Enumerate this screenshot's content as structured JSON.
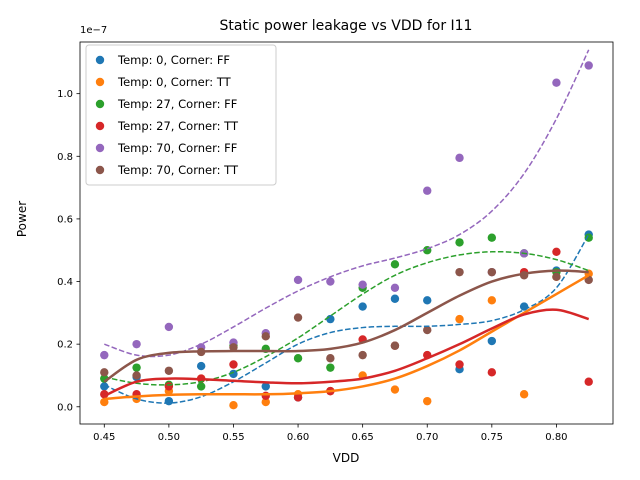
{
  "chart_data": {
    "type": "scatter",
    "title": "Static power leakage vs VDD for I11",
    "xlabel": "VDD",
    "ylabel": "Power",
    "y_offset_label": "1e−7",
    "y_multiplier": 1e-07,
    "xlim": [
      0.4312,
      0.8438
    ],
    "ylim": [
      -0.055,
      1.165
    ],
    "x_ticks": [
      0.45,
      0.5,
      0.55,
      0.6,
      0.65,
      0.7,
      0.75,
      0.8
    ],
    "x_tick_labels": [
      "0.45",
      "0.50",
      "0.55",
      "0.60",
      "0.65",
      "0.70",
      "0.75",
      "0.80"
    ],
    "y_ticks": [
      0.0,
      0.2,
      0.4,
      0.6,
      0.8,
      1.0
    ],
    "y_tick_labels": [
      "0.0",
      "0.2",
      "0.4",
      "0.6",
      "0.8",
      "1.0"
    ],
    "grid": false,
    "legend_position": "upper-left",
    "x": [
      0.45,
      0.475,
      0.5,
      0.525,
      0.55,
      0.575,
      0.6,
      0.625,
      0.65,
      0.675,
      0.7,
      0.725,
      0.75,
      0.775,
      0.8,
      0.825
    ],
    "series": [
      {
        "name": "Temp: 0, Corner: FF",
        "color": "#1f77b4",
        "fit_style": "dashed",
        "values": [
          0.065,
          0.095,
          0.018,
          0.13,
          0.105,
          0.065,
          0.03,
          0.28,
          0.32,
          0.345,
          0.34,
          0.12,
          0.21,
          0.32,
          0.435,
          0.55
        ],
        "fit": [
          0.07,
          0.025,
          0.012,
          0.032,
          0.08,
          0.14,
          0.2,
          0.237,
          0.253,
          0.257,
          0.257,
          0.263,
          0.275,
          0.31,
          0.38,
          0.55
        ]
      },
      {
        "name": "Temp: 0, Corner: TT",
        "color": "#ff7f0e",
        "fit_style": "solid",
        "values": [
          0.015,
          0.025,
          0.05,
          0.09,
          0.005,
          0.015,
          0.04,
          0.05,
          0.1,
          0.055,
          0.018,
          0.28,
          0.34,
          0.04,
          0.415,
          0.425
        ],
        "fit": [
          0.025,
          0.033,
          0.038,
          0.04,
          0.04,
          0.04,
          0.043,
          0.05,
          0.065,
          0.09,
          0.13,
          0.18,
          0.24,
          0.3,
          0.36,
          0.42
        ]
      },
      {
        "name": "Temp: 27, Corner: FF",
        "color": "#2ca02c",
        "fit_style": "dashed",
        "values": [
          0.09,
          0.125,
          0.07,
          0.065,
          0.195,
          0.185,
          0.155,
          0.125,
          0.38,
          0.455,
          0.5,
          0.525,
          0.54,
          0.49,
          0.43,
          0.54
        ],
        "fit": [
          0.095,
          0.075,
          0.07,
          0.08,
          0.11,
          0.16,
          0.22,
          0.29,
          0.36,
          0.42,
          0.46,
          0.485,
          0.495,
          0.49,
          0.47,
          0.435
        ]
      },
      {
        "name": "Temp: 27, Corner: TT",
        "color": "#d62728",
        "fit_style": "solid",
        "values": [
          0.04,
          0.04,
          0.065,
          0.09,
          0.135,
          0.035,
          0.03,
          0.05,
          0.215,
          0.195,
          0.165,
          0.135,
          0.11,
          0.43,
          0.495,
          0.08
        ],
        "fit": [
          0.035,
          0.08,
          0.09,
          0.088,
          0.083,
          0.078,
          0.075,
          0.08,
          0.09,
          0.115,
          0.155,
          0.2,
          0.25,
          0.295,
          0.31,
          0.28
        ]
      },
      {
        "name": "Temp: 70, Corner: FF",
        "color": "#9467bd",
        "fit_style": "dashed",
        "values": [
          0.165,
          0.2,
          0.255,
          0.19,
          0.205,
          0.235,
          0.405,
          0.4,
          0.39,
          0.38,
          0.69,
          0.795,
          0.43,
          0.49,
          1.035,
          1.09
        ],
        "fit": [
          0.2,
          0.165,
          0.165,
          0.2,
          0.255,
          0.315,
          0.37,
          0.415,
          0.45,
          0.475,
          0.505,
          0.55,
          0.625,
          0.745,
          0.92,
          1.14
        ]
      },
      {
        "name": "Temp: 70, Corner: TT",
        "color": "#8c564b",
        "fit_style": "solid",
        "values": [
          0.11,
          0.1,
          0.115,
          0.175,
          0.19,
          0.225,
          0.285,
          0.155,
          0.165,
          0.195,
          0.245,
          0.43,
          0.43,
          0.42,
          0.415,
          0.405
        ],
        "fit": [
          0.08,
          0.15,
          0.172,
          0.177,
          0.178,
          0.178,
          0.178,
          0.185,
          0.205,
          0.245,
          0.3,
          0.355,
          0.4,
          0.425,
          0.435,
          0.43
        ]
      }
    ]
  }
}
